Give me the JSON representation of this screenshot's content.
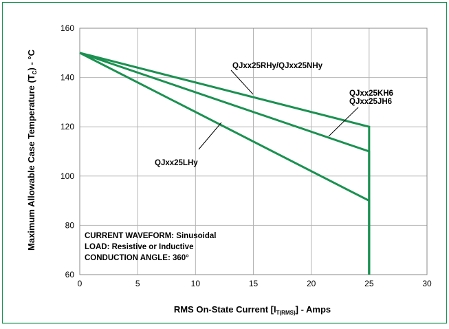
{
  "chart_data": {
    "type": "line",
    "xlabel_main": "RMS On-State Current [I",
    "xlabel_sub": "T(RMS)",
    "xlabel_tail": "] - Amps",
    "ylabel_main": "Maximum Allowable Case Temperature (T",
    "ylabel_sub": "C",
    "ylabel_tail": ") - °C",
    "xlim": [
      0,
      30
    ],
    "ylim": [
      60,
      160
    ],
    "x_ticks": [
      0,
      5,
      10,
      15,
      20,
      25,
      30
    ],
    "y_ticks": [
      60,
      80,
      100,
      120,
      140,
      160
    ],
    "grid": true,
    "series": [
      {
        "name": "QJxx25RHy/QJxx25NHy",
        "x": [
          0,
          25,
          25
        ],
        "y": [
          150,
          120,
          60
        ]
      },
      {
        "name": "QJxx25KH6",
        "name2": "QJxx25JH6",
        "x": [
          0,
          25,
          25
        ],
        "y": [
          150,
          110,
          60
        ]
      },
      {
        "name": "QJxx25LHy",
        "x": [
          0,
          25,
          25
        ],
        "y": [
          150,
          90,
          60
        ]
      }
    ],
    "annotations": [
      "CURRENT WAVEFORM: Sinusoidal",
      "LOAD: Resistive or Inductive",
      "CONDUCTION ANGLE: 360°"
    ],
    "colors": {
      "line": "#1a9150",
      "frame": "#1a9150",
      "grid": "#b4b4b4"
    }
  }
}
